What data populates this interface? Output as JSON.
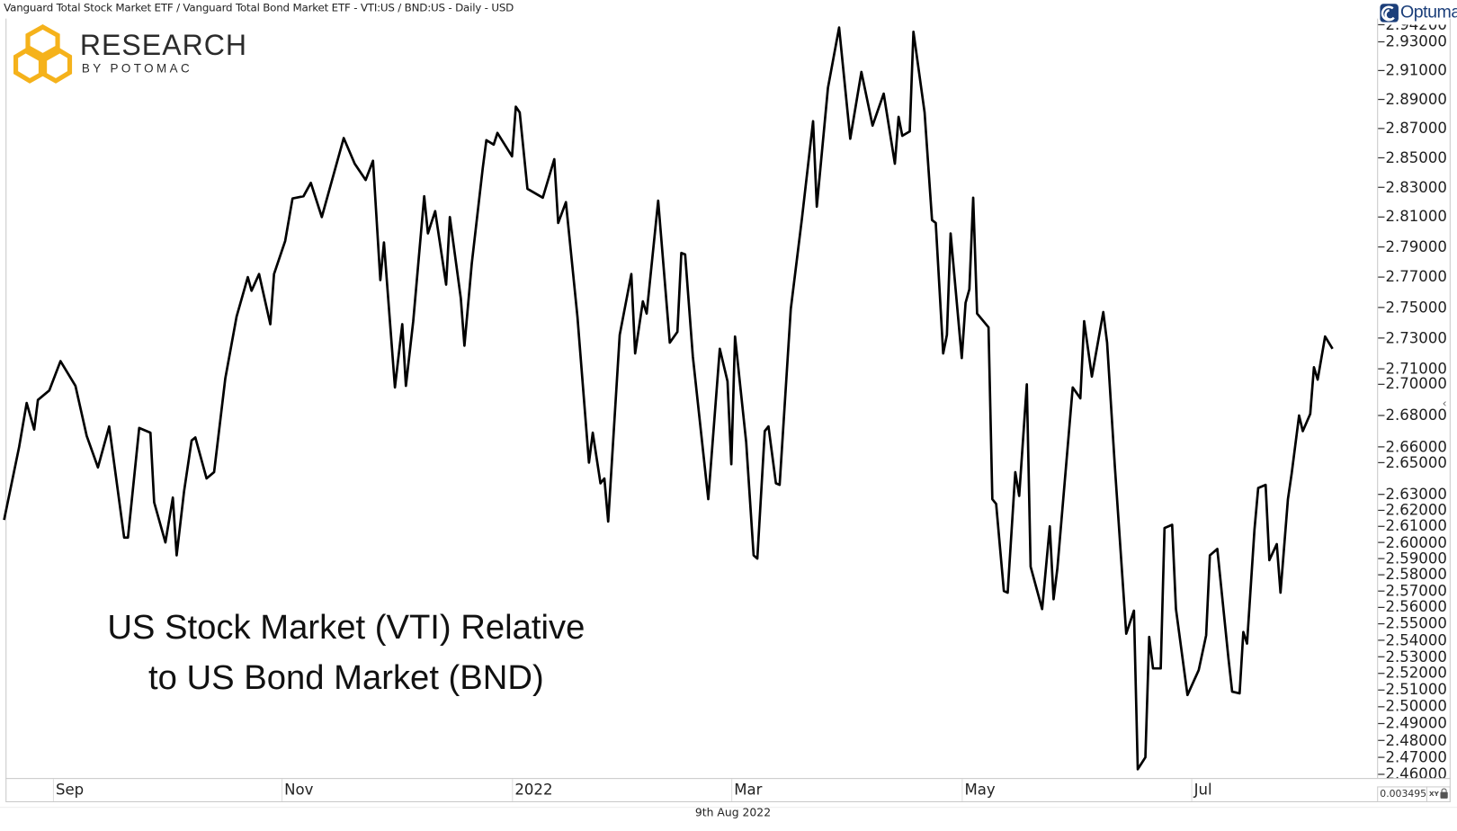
{
  "header": {
    "title": "Vanguard Total Stock Market ETF / Vanguard Total Bond Market ETF - VTI:US / BND:US - Daily - USD"
  },
  "logo": {
    "name": "RESEARCH",
    "sub": "BY POTOMAC",
    "color": "#F5B21B"
  },
  "vendor_logo": {
    "name": "Optuma",
    "color": "#1C3F7A"
  },
  "footer": {
    "date": "9th Aug 2022",
    "readout": "0.0034950",
    "xy_label": "XY",
    "lock_icon": "lock-icon"
  },
  "chart_data": {
    "type": "line",
    "title_lines": [
      "US Stock Market (VTI) Relative",
      "to US Bond Market (BND)"
    ],
    "y_scale": "log",
    "y_axis_position": "right",
    "ylim": [
      2.458,
      2.945
    ],
    "grid": false,
    "line_color": "#000000",
    "y_ticks": [
      "2.94200",
      "2.93000",
      "2.91000",
      "2.89000",
      "2.87000",
      "2.85000",
      "2.83000",
      "2.81000",
      "2.79000",
      "2.77000",
      "2.75000",
      "2.73000",
      "2.71000",
      "2.70000",
      "2.68000",
      "2.66000",
      "2.65000",
      "2.63000",
      "2.62000",
      "2.61000",
      "2.60000",
      "2.59000",
      "2.58000",
      "2.57000",
      "2.56000",
      "2.55000",
      "2.54000",
      "2.53000",
      "2.52000",
      "2.51000",
      "2.50000",
      "2.49000",
      "2.48000",
      "2.47000",
      "2.46000"
    ],
    "x_ticks": [
      {
        "label": "Sep",
        "date": "2021-09-01"
      },
      {
        "label": "Nov",
        "date": "2021-11-01"
      },
      {
        "label": "2022",
        "date": "2022-01-03"
      },
      {
        "label": "Mar",
        "date": "2022-03-01"
      },
      {
        "label": "May",
        "date": "2022-05-02"
      },
      {
        "label": "Jul",
        "date": "2022-07-01"
      }
    ],
    "series": [
      {
        "points": [
          [
            "2021-08-19",
            2.614
          ],
          [
            "2021-08-23",
            2.66
          ],
          [
            "2021-08-25",
            2.688
          ],
          [
            "2021-08-27",
            2.671
          ],
          [
            "2021-08-28",
            2.69
          ],
          [
            "2021-08-31",
            2.696
          ],
          [
            "2021-09-03",
            2.715
          ],
          [
            "2021-09-07",
            2.699
          ],
          [
            "2021-09-10",
            2.667
          ],
          [
            "2021-09-13",
            2.647
          ],
          [
            "2021-09-16",
            2.673
          ],
          [
            "2021-09-20",
            2.603
          ],
          [
            "2021-09-21",
            2.603
          ],
          [
            "2021-09-24",
            2.672
          ],
          [
            "2021-09-27",
            2.669
          ],
          [
            "2021-09-28",
            2.625
          ],
          [
            "2021-10-01",
            2.6
          ],
          [
            "2021-10-03",
            2.628
          ],
          [
            "2021-10-04",
            2.592
          ],
          [
            "2021-10-06",
            2.632
          ],
          [
            "2021-10-08",
            2.664
          ],
          [
            "2021-10-09",
            2.666
          ],
          [
            "2021-10-12",
            2.64
          ],
          [
            "2021-10-14",
            2.644
          ],
          [
            "2021-10-17",
            2.704
          ],
          [
            "2021-10-20",
            2.744
          ],
          [
            "2021-10-23",
            2.77
          ],
          [
            "2021-10-24",
            2.761
          ],
          [
            "2021-10-26",
            2.772
          ],
          [
            "2021-10-29",
            2.739
          ],
          [
            "2021-10-30",
            2.772
          ],
          [
            "2021-11-02",
            2.794
          ],
          [
            "2021-11-04",
            2.8225
          ],
          [
            "2021-11-07",
            2.824
          ],
          [
            "2021-11-09",
            2.833
          ],
          [
            "2021-11-12",
            2.81
          ],
          [
            "2021-11-18",
            2.8635
          ],
          [
            "2021-11-21",
            2.846
          ],
          [
            "2021-11-24",
            2.835
          ],
          [
            "2021-11-26",
            2.848
          ],
          [
            "2021-11-28",
            2.768
          ],
          [
            "2021-11-29",
            2.793
          ],
          [
            "2021-12-02",
            2.698
          ],
          [
            "2021-12-04",
            2.739
          ],
          [
            "2021-12-05",
            2.699
          ],
          [
            "2021-12-07",
            2.741
          ],
          [
            "2021-12-10",
            2.824
          ],
          [
            "2021-12-11",
            2.799
          ],
          [
            "2021-12-13",
            2.814
          ],
          [
            "2021-12-16",
            2.765
          ],
          [
            "2021-12-17",
            2.81
          ],
          [
            "2021-12-20",
            2.756
          ],
          [
            "2021-12-21",
            2.725
          ],
          [
            "2021-12-23",
            2.779
          ],
          [
            "2021-12-26",
            2.843
          ],
          [
            "2021-12-27",
            2.862
          ],
          [
            "2021-12-29",
            2.859
          ],
          [
            "2021-12-30",
            2.867
          ],
          [
            "2022-01-03",
            2.851
          ],
          [
            "2022-01-04",
            2.885
          ],
          [
            "2022-01-05",
            2.881
          ],
          [
            "2022-01-07",
            2.829
          ],
          [
            "2022-01-11",
            2.823
          ],
          [
            "2022-01-14",
            2.849
          ],
          [
            "2022-01-15",
            2.806
          ],
          [
            "2022-01-17",
            2.82
          ],
          [
            "2022-01-20",
            2.744
          ],
          [
            "2022-01-23",
            2.65
          ],
          [
            "2022-01-24",
            2.669
          ],
          [
            "2022-01-26",
            2.637
          ],
          [
            "2022-01-27",
            2.64
          ],
          [
            "2022-01-28",
            2.613
          ],
          [
            "2022-01-31",
            2.732
          ],
          [
            "2022-02-03",
            2.772
          ],
          [
            "2022-02-04",
            2.72
          ],
          [
            "2022-02-06",
            2.754
          ],
          [
            "2022-02-07",
            2.746
          ],
          [
            "2022-02-10",
            2.821
          ],
          [
            "2022-02-13",
            2.727
          ],
          [
            "2022-02-15",
            2.734
          ],
          [
            "2022-02-16",
            2.786
          ],
          [
            "2022-02-17",
            2.785
          ],
          [
            "2022-02-19",
            2.718
          ],
          [
            "2022-02-23",
            2.627
          ],
          [
            "2022-02-26",
            2.723
          ],
          [
            "2022-02-28",
            2.702
          ],
          [
            "2022-03-01",
            2.649
          ],
          [
            "2022-03-02",
            2.731
          ],
          [
            "2022-03-05",
            2.663
          ],
          [
            "2022-03-07",
            2.592
          ],
          [
            "2022-03-08",
            2.59
          ],
          [
            "2022-03-10",
            2.67
          ],
          [
            "2022-03-11",
            2.673
          ],
          [
            "2022-03-13",
            2.637
          ],
          [
            "2022-03-14",
            2.636
          ],
          [
            "2022-03-17",
            2.749
          ],
          [
            "2022-03-20",
            2.809
          ],
          [
            "2022-03-23",
            2.875
          ],
          [
            "2022-03-24",
            2.817
          ],
          [
            "2022-03-27",
            2.898
          ],
          [
            "2022-03-30",
            2.94
          ],
          [
            "2022-04-02",
            2.863
          ],
          [
            "2022-04-05",
            2.909
          ],
          [
            "2022-04-08",
            2.872
          ],
          [
            "2022-04-11",
            2.894
          ],
          [
            "2022-04-14",
            2.846
          ],
          [
            "2022-04-15",
            2.878
          ],
          [
            "2022-04-16",
            2.865
          ],
          [
            "2022-04-18",
            2.868
          ],
          [
            "2022-04-19",
            2.937
          ],
          [
            "2022-04-22",
            2.881
          ],
          [
            "2022-04-24",
            2.808
          ],
          [
            "2022-04-25",
            2.806
          ],
          [
            "2022-04-27",
            2.72
          ],
          [
            "2022-04-28",
            2.732
          ],
          [
            "2022-04-29",
            2.799
          ],
          [
            "2022-05-02",
            2.717
          ],
          [
            "2022-05-03",
            2.753
          ],
          [
            "2022-05-04",
            2.762
          ],
          [
            "2022-05-05",
            2.823
          ],
          [
            "2022-05-06",
            2.746
          ],
          [
            "2022-05-09",
            2.737
          ],
          [
            "2022-05-10",
            2.627
          ],
          [
            "2022-05-11",
            2.624
          ],
          [
            "2022-05-13",
            2.57
          ],
          [
            "2022-05-14",
            2.569
          ],
          [
            "2022-05-16",
            2.644
          ],
          [
            "2022-05-17",
            2.629
          ],
          [
            "2022-05-19",
            2.7
          ],
          [
            "2022-05-20",
            2.585
          ],
          [
            "2022-05-23",
            2.559
          ],
          [
            "2022-05-25",
            2.61
          ],
          [
            "2022-05-26",
            2.565
          ],
          [
            "2022-05-27",
            2.584
          ],
          [
            "2022-05-31",
            2.698
          ],
          [
            "2022-06-02",
            2.691
          ],
          [
            "2022-06-03",
            2.741
          ],
          [
            "2022-06-05",
            2.705
          ],
          [
            "2022-06-08",
            2.747
          ],
          [
            "2022-06-09",
            2.727
          ],
          [
            "2022-06-11",
            2.648
          ],
          [
            "2022-06-14",
            2.544
          ],
          [
            "2022-06-16",
            2.558
          ],
          [
            "2022-06-17",
            2.463
          ],
          [
            "2022-06-19",
            2.47
          ],
          [
            "2022-06-20",
            2.542
          ],
          [
            "2022-06-21",
            2.523
          ],
          [
            "2022-06-23",
            2.523
          ],
          [
            "2022-06-24",
            2.609
          ],
          [
            "2022-06-26",
            2.611
          ],
          [
            "2022-06-27",
            2.559
          ],
          [
            "2022-06-30",
            2.507
          ],
          [
            "2022-07-03",
            2.522
          ],
          [
            "2022-07-05",
            2.543
          ],
          [
            "2022-07-06",
            2.592
          ],
          [
            "2022-07-08",
            2.596
          ],
          [
            "2022-07-11",
            2.529
          ],
          [
            "2022-07-12",
            2.509
          ],
          [
            "2022-07-14",
            2.508
          ],
          [
            "2022-07-15",
            2.545
          ],
          [
            "2022-07-16",
            2.538
          ],
          [
            "2022-07-18",
            2.608
          ],
          [
            "2022-07-19",
            2.634
          ],
          [
            "2022-07-21",
            2.636
          ],
          [
            "2022-07-22",
            2.589
          ],
          [
            "2022-07-24",
            2.599
          ],
          [
            "2022-07-25",
            2.569
          ],
          [
            "2022-07-27",
            2.627
          ],
          [
            "2022-07-28",
            2.643
          ],
          [
            "2022-07-30",
            2.68
          ],
          [
            "2022-07-31",
            2.67
          ],
          [
            "2022-08-02",
            2.681
          ],
          [
            "2022-08-03",
            2.711
          ],
          [
            "2022-08-04",
            2.703
          ],
          [
            "2022-08-06",
            2.731
          ],
          [
            "2022-08-08",
            2.723
          ]
        ]
      }
    ]
  }
}
